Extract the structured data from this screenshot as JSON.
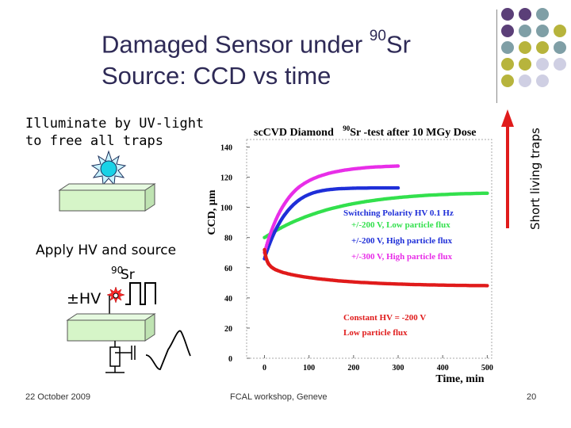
{
  "slide": {
    "title_line1_pre": "Damaged Sensor under ",
    "title_sup": "90",
    "title_line1_post": "Sr",
    "title_line2": "Source: CCD vs time",
    "uv_text": "Illuminate by UV-light\nto free all traps",
    "apply_text": "Apply HV and source",
    "sr_isotope": "90",
    "sr_element": "Sr",
    "hv_label": "±HV",
    "side_label": "Short living traps",
    "footer_date": "22 October 2009",
    "footer_event": "FCAL workshop, Geneve",
    "page_number": "20"
  },
  "colors": {
    "title": "#2e2a56",
    "dot_purple": "#5b3f78",
    "dot_gray": "#7f9fa6",
    "dot_olive": "#b7b43c",
    "dot_light": "#cfcfe3",
    "magenta": "#e82ee8",
    "blue": "#1f2fd8",
    "green": "#33e04d",
    "red": "#e01b1b",
    "arrow_red": "#e01b1b",
    "box_green": "#d6f5c8"
  },
  "chart_data": {
    "type": "scatter",
    "title_main": "scCVD Diamond",
    "title_sup": "90",
    "title_rest": "Sr -test after 10 MGy Dose",
    "xlabel": "Time, min",
    "ylabel": "CCD, µm",
    "xlim": [
      -40,
      510
    ],
    "ylim": [
      0,
      145
    ],
    "xticks": [
      0,
      100,
      200,
      300,
      400,
      500
    ],
    "yticks": [
      0,
      20,
      40,
      60,
      80,
      100,
      120,
      140
    ],
    "grid": false,
    "legend_title": "Switching Polarity HV 0.1 Hz",
    "series": [
      {
        "name": "+/-200 V, Low particle flux",
        "color": "#33e04d",
        "x": [
          0,
          10,
          20,
          30,
          40,
          50,
          60,
          70,
          80,
          90,
          100,
          110,
          120,
          130,
          140,
          150,
          160,
          170,
          180,
          190,
          200,
          210,
          220,
          230,
          240,
          250,
          260,
          270,
          280,
          290,
          300,
          310,
          320,
          330,
          340,
          350,
          360,
          370,
          380,
          390,
          400,
          410,
          420,
          430,
          440,
          450,
          460,
          470,
          480,
          490,
          500
        ],
        "y": [
          80,
          81.8,
          83.6,
          85.3,
          86.9,
          88.4,
          89.8,
          91.1,
          92.3,
          93.5,
          94.6,
          95.6,
          96.6,
          97.5,
          98.4,
          99.2,
          99.9,
          100.6,
          101.3,
          101.9,
          102.5,
          103,
          103.5,
          104,
          104.4,
          104.8,
          105.2,
          105.6,
          105.9,
          106.2,
          106.5,
          106.8,
          107,
          107.3,
          107.5,
          107.7,
          107.9,
          108.1,
          108.2,
          108.4,
          108.5,
          108.6,
          108.8,
          108.9,
          109,
          109.1,
          109.1,
          109.2,
          109.3,
          109.4,
          109.4
        ]
      },
      {
        "name": "+/-200 V, High particle flux",
        "color": "#1f2fd8",
        "x": [
          0,
          5,
          10,
          15,
          20,
          25,
          30,
          35,
          40,
          45,
          50,
          55,
          60,
          65,
          70,
          75,
          80,
          90,
          100,
          110,
          120,
          130,
          140,
          150,
          160,
          170,
          180,
          190,
          200,
          210,
          220,
          230,
          240,
          250,
          260,
          270,
          280,
          290,
          300
        ],
        "y": [
          66,
          70.5,
          74.6,
          78.4,
          81.8,
          85,
          87.8,
          90.4,
          92.8,
          95,
          96.9,
          98.7,
          100.3,
          101.8,
          103.1,
          104.3,
          105.4,
          107.2,
          108.6,
          109.7,
          110.5,
          111.1,
          111.6,
          111.9,
          112.2,
          112.4,
          112.5,
          112.6,
          112.7,
          112.8,
          112.8,
          112.8,
          112.9,
          112.9,
          112.9,
          112.9,
          112.9,
          112.9,
          112.9
        ]
      },
      {
        "name": "+/-300 V, High particle flux",
        "color": "#e82ee8",
        "x": [
          0,
          5,
          10,
          15,
          20,
          25,
          30,
          35,
          40,
          45,
          50,
          55,
          60,
          65,
          70,
          75,
          80,
          90,
          100,
          110,
          120,
          130,
          140,
          150,
          160,
          170,
          180,
          190,
          200,
          210,
          220,
          230,
          240,
          250,
          260,
          270,
          280,
          290,
          300
        ],
        "y": [
          70,
          75.1,
          79.8,
          84,
          87.8,
          91.3,
          94.5,
          97.4,
          100,
          102.4,
          104.6,
          106.6,
          108.4,
          110,
          111.5,
          112.8,
          114,
          116,
          117.7,
          119.1,
          120.3,
          121.3,
          122.2,
          123,
          123.6,
          124.2,
          124.7,
          125.1,
          125.5,
          125.8,
          126.1,
          126.4,
          126.6,
          126.8,
          126.9,
          127.1,
          127.2,
          127.3,
          127.4
        ]
      },
      {
        "name": "Constant HV = -200 V, Low particle flux",
        "color": "#e01b1b",
        "x": [
          0,
          2,
          4,
          6,
          8,
          10,
          15,
          20,
          25,
          30,
          40,
          50,
          60,
          70,
          80,
          90,
          100,
          110,
          120,
          130,
          140,
          150,
          160,
          170,
          180,
          190,
          200,
          210,
          220,
          230,
          240,
          250,
          260,
          270,
          280,
          290,
          300,
          310,
          320,
          330,
          340,
          350,
          360,
          370,
          380,
          390,
          400,
          410,
          420,
          430,
          440,
          450,
          460,
          470,
          480,
          490,
          500
        ],
        "y": [
          72,
          68.5,
          66.2,
          64.5,
          63.2,
          62.2,
          60.6,
          59.5,
          58.7,
          58.1,
          57,
          56.2,
          55.5,
          54.9,
          54.4,
          53.9,
          53.5,
          53.1,
          52.7,
          52.4,
          52.1,
          51.8,
          51.5,
          51.2,
          51,
          50.8,
          50.6,
          50.4,
          50.2,
          50.1,
          49.9,
          49.8,
          49.6,
          49.5,
          49.4,
          49.3,
          49.2,
          49.1,
          49,
          48.9,
          48.8,
          48.8,
          48.7,
          48.6,
          48.6,
          48.5,
          48.5,
          48.4,
          48.4,
          48.3,
          48.3,
          48.3,
          48.2,
          48.2,
          48.2,
          48.2,
          48.1
        ]
      }
    ],
    "annotations": [
      {
        "text": "Switching Polarity HV 0.1 Hz",
        "color": "#1f2fd8"
      },
      {
        "text": "+/-200 V, Low particle flux",
        "color": "#33e04d"
      },
      {
        "text": "+/-200 V, High particle flux",
        "color": "#1f2fd8"
      },
      {
        "text": "+/-300 V, High particle flux",
        "color": "#e82ee8"
      },
      {
        "text": "Constant HV = -200 V",
        "color": "#e01b1b"
      },
      {
        "text": "Low particle flux",
        "color": "#e01b1b"
      }
    ]
  }
}
